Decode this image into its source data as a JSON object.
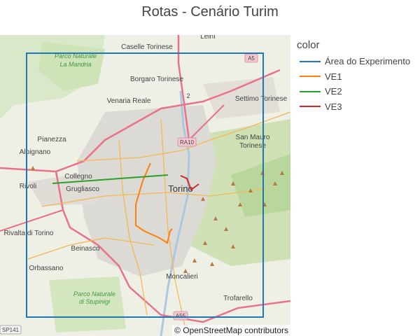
{
  "title": "Rotas - Cenário Turim",
  "legend": {
    "title": "color",
    "items": [
      {
        "label": "Área do Experimento",
        "color": "#1f77b4"
      },
      {
        "label": "VE1",
        "color": "#ff7f0e"
      },
      {
        "label": "VE2",
        "color": "#2ca02c"
      },
      {
        "label": "VE3",
        "color": "#d62728"
      }
    ]
  },
  "attribution": "© OpenStreetMap contributors",
  "map_labels": {
    "leini": "Leinì",
    "caselle": "Caselle Torinese",
    "parco_mandria_1": "Parco Naturale",
    "parco_mandria_2": "La Mandria",
    "borgaro": "Borgaro Torinese",
    "venaria": "Venaria Reale",
    "settimo": "Settimo Torinese",
    "pianezza": "Pianezza",
    "alpignano": "Alpignano",
    "san_mauro_1": "San Mauro",
    "san_mauro_2": "Torinese",
    "collegno": "Collegno",
    "rivoli": "Rivoli",
    "grugliasco": "Grugliasco",
    "torino": "Torino",
    "rivalta": "Rivalta di Torino",
    "beinasco": "Beinasco",
    "orbassano": "Orbassano",
    "parco_stupinigi_1": "Parco Naturale",
    "parco_stupinigi_2": "di Stupinigi",
    "moncalieri": "Moncalieri",
    "trofarello": "Trofarello",
    "shield_a5": "A5",
    "shield_ra10": "RA10",
    "shield_a55": "A55",
    "shield_sp141": "SP141",
    "shield_2": "2"
  }
}
